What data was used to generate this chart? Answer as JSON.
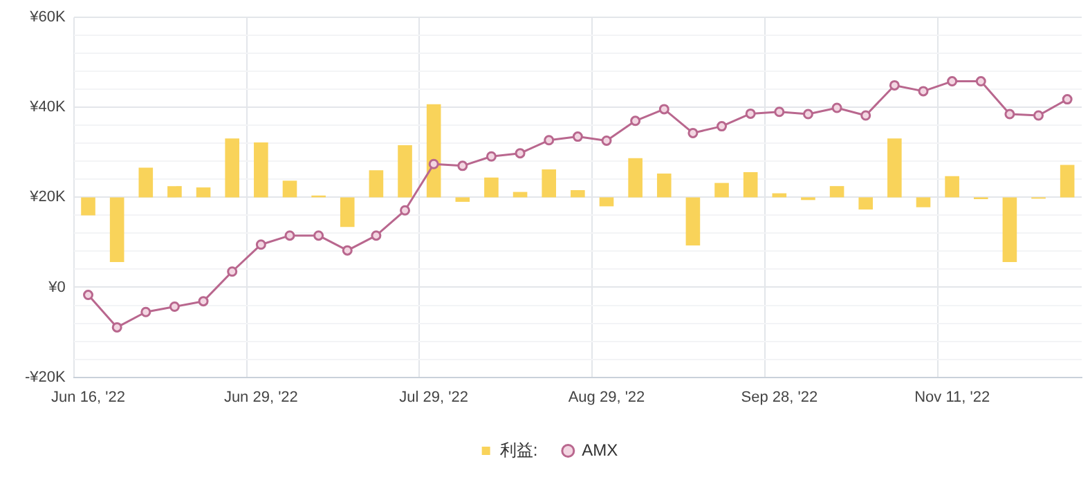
{
  "chart_data": {
    "type": "bar",
    "categories": [
      "Jun 16, '22",
      null,
      null,
      null,
      null,
      null,
      "Jun 29, '22",
      null,
      null,
      null,
      null,
      null,
      "Jul 29, '22",
      null,
      null,
      null,
      null,
      null,
      "Aug 29, '22",
      null,
      null,
      null,
      null,
      null,
      "Sep 28, '22",
      null,
      null,
      null,
      null,
      null,
      "Nov 11, '22",
      null,
      null,
      null,
      null
    ],
    "series": [
      {
        "name": "利益:",
        "color": "#f9d35a",
        "base": [
          20000,
          20000,
          20000,
          20000,
          20000,
          20000,
          20000,
          20000,
          20000,
          20000,
          20000,
          20000,
          20000,
          20000,
          20000,
          20000,
          20000,
          20000,
          20000,
          20000,
          20000,
          20000,
          20000,
          20000,
          20000,
          20000,
          20000,
          20000,
          20000,
          20000,
          20000,
          20000,
          20000,
          20000,
          20000
        ],
        "values": [
          -4000,
          -14400,
          6600,
          2500,
          2200,
          13100,
          12200,
          3700,
          400,
          -6600,
          6000,
          11600,
          20700,
          -1000,
          4400,
          1200,
          6200,
          1600,
          -2000,
          8700,
          5300,
          -10700,
          3200,
          5600,
          900,
          -600,
          2500,
          -2700,
          13100,
          -2200,
          4700,
          -400,
          -14400,
          -300,
          7200
        ]
      },
      {
        "name": "AMX",
        "type": "line",
        "color": "#b9678e",
        "values": [
          -1700,
          -8900,
          -5500,
          -4300,
          -3100,
          3500,
          9500,
          11500,
          11500,
          8200,
          11500,
          17100,
          27400,
          27000,
          29100,
          29800,
          32700,
          33500,
          32600,
          37000,
          39600,
          34300,
          35800,
          38600,
          39000,
          38500,
          39900,
          38200,
          44900,
          43600,
          45800,
          45800,
          38500,
          38200,
          41800
        ]
      }
    ],
    "ylim": [
      -20000,
      60000
    ],
    "yticks": [
      {
        "value": -20000,
        "label": "-¥20K"
      },
      {
        "value": -16000,
        "label": null
      },
      {
        "value": -12000,
        "label": null
      },
      {
        "value": -8000,
        "label": null
      },
      {
        "value": -4000,
        "label": null
      },
      {
        "value": 0,
        "label": "¥0"
      },
      {
        "value": 4000,
        "label": null
      },
      {
        "value": 8000,
        "label": null
      },
      {
        "value": 12000,
        "label": null
      },
      {
        "value": 16000,
        "label": null
      },
      {
        "value": 20000,
        "label": "¥20K"
      },
      {
        "value": 24000,
        "label": null
      },
      {
        "value": 28000,
        "label": null
      },
      {
        "value": 32000,
        "label": null
      },
      {
        "value": 36000,
        "label": null
      },
      {
        "value": 40000,
        "label": "¥40K"
      },
      {
        "value": 44000,
        "label": null
      },
      {
        "value": 48000,
        "label": null
      },
      {
        "value": 52000,
        "label": null
      },
      {
        "value": 56000,
        "label": null
      },
      {
        "value": 60000,
        "label": "¥60K"
      }
    ],
    "grid": true,
    "legend": "bottom",
    "marker": "circle",
    "line_style": "solid"
  }
}
